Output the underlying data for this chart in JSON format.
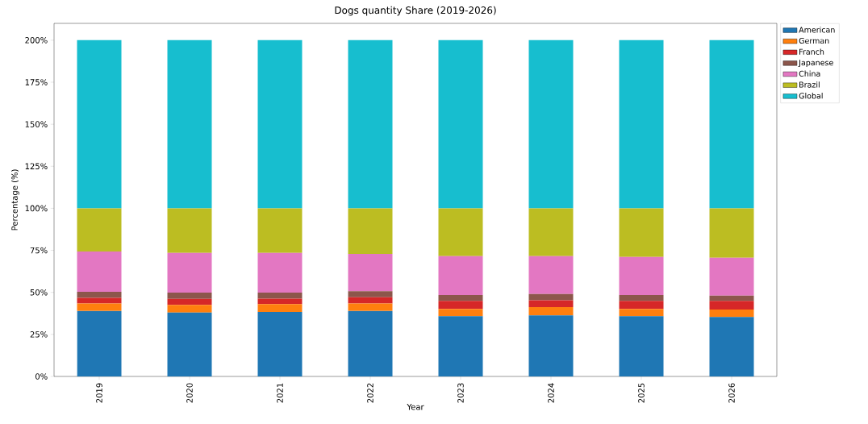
{
  "chart_data": {
    "type": "bar",
    "stacked": true,
    "title": "Dogs quantity Share (2019-2026)",
    "xlabel": "Year",
    "ylabel": "Percentage (%)",
    "categories": [
      "2019",
      "2020",
      "2021",
      "2022",
      "2023",
      "2024",
      "2025",
      "2026"
    ],
    "series": [
      {
        "name": "American",
        "color": "#1f77b4",
        "values": [
          39.0,
          38.0,
          38.3,
          39.0,
          35.8,
          36.3,
          35.8,
          35.3
        ]
      },
      {
        "name": "German",
        "color": "#ff7f0e",
        "values": [
          4.4,
          4.5,
          4.7,
          4.4,
          4.4,
          4.9,
          4.4,
          4.5
        ]
      },
      {
        "name": "Franch",
        "color": "#d62728",
        "values": [
          3.4,
          3.7,
          3.3,
          3.7,
          4.7,
          4.1,
          4.7,
          5.1
        ]
      },
      {
        "name": "Japanese",
        "color": "#8c564b",
        "values": [
          3.5,
          3.6,
          3.5,
          3.6,
          3.5,
          3.7,
          3.5,
          3.2
        ]
      },
      {
        "name": "China",
        "color": "#e377c2",
        "values": [
          24.0,
          23.7,
          23.7,
          22.2,
          23.2,
          22.6,
          22.7,
          22.5
        ]
      },
      {
        "name": "Brazil",
        "color": "#bcbd22",
        "values": [
          25.7,
          26.5,
          26.5,
          27.1,
          28.4,
          28.4,
          28.9,
          29.4
        ]
      },
      {
        "name": "Global",
        "color": "#17becf",
        "values": [
          100,
          100,
          100,
          100,
          100,
          100,
          100,
          100
        ]
      }
    ],
    "ylim": [
      0,
      210
    ],
    "yticks": [
      {
        "value": 0,
        "label": "0%"
      },
      {
        "value": 25,
        "label": "25%"
      },
      {
        "value": 50,
        "label": "50%"
      },
      {
        "value": 75,
        "label": "75%"
      },
      {
        "value": 100,
        "label": "100%"
      },
      {
        "value": 125,
        "label": "125%"
      },
      {
        "value": 150,
        "label": "150%"
      },
      {
        "value": 175,
        "label": "175%"
      },
      {
        "value": 200,
        "label": "200%"
      }
    ],
    "legend": "top right outside"
  }
}
